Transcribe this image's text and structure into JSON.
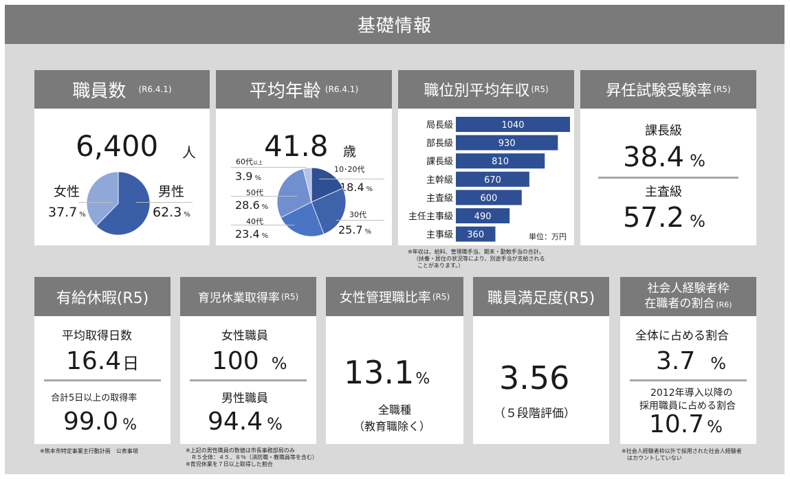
{
  "title": "基礎情報",
  "staff": {
    "header": "職員数",
    "date": "(R6.4.1)",
    "count": "6,400",
    "unit": "人",
    "female_label": "女性",
    "female_value": "37.7",
    "male_label": "男性",
    "male_value": "62.3",
    "pct": "%"
  },
  "age": {
    "header": "平均年齢",
    "date": "(R6.4.1)",
    "value": "41.8",
    "unit": "歳",
    "labels": [
      {
        "name": "60代",
        "suffix": "以上",
        "value": "3.9"
      },
      {
        "name": "50代",
        "value": "28.6"
      },
      {
        "name": "40代",
        "value": "23.4"
      },
      {
        "name": "10･20代",
        "value": "18.4"
      },
      {
        "name": "30代",
        "value": "25.7"
      }
    ],
    "pct": "%"
  },
  "salary": {
    "header": "職位別平均年収",
    "tag": "(R5)",
    "unit_label": "単位：万円",
    "note_lines": [
      "※年収は、給料、管理職手当、期末・勤勉手当の合計。",
      "（扶養・居住の状況等により、別途手当が支給される",
      "ことがあります。）"
    ]
  },
  "exam": {
    "header": "昇任試験受験率",
    "tag": "(R5)",
    "label1": "課長級",
    "value1": "38.4",
    "label2": "主査級",
    "value2": "57.2",
    "pct": "%"
  },
  "leave": {
    "header": "有給休暇(R5)",
    "label1": "平均取得日数",
    "value1": "16.4",
    "unit1": "日",
    "label2": "合計5日以上の取得率",
    "value2": "99.0",
    "pct": "%",
    "note": "※熊本市特定事業主行動計画　公表事項"
  },
  "childcare": {
    "header": "育児休業取得率",
    "tag": "(R5)",
    "label1": "女性職員",
    "value1": "100",
    "label2": "男性職員",
    "value2": "94.4",
    "pct": "%",
    "note_lines": [
      "※上記の男性職員の数値は市長事務部局のみ",
      "　Ｒ５全体：４５．８％（消防職・教職員等を含む）",
      "※育児休業を７日以上取得した割合"
    ]
  },
  "women_mgr": {
    "header": "女性管理職比率",
    "tag": "(R5)",
    "value": "13.1",
    "pct": "%",
    "sub1": "全職種",
    "sub2": "（教育職除く）"
  },
  "satisfaction": {
    "header": "職員満足度(R5)",
    "value": "3.56",
    "sub": "（５段階評価）"
  },
  "experienced": {
    "header1": "社会人経験者枠",
    "header2": "在職者の割合",
    "tag": "(R6)",
    "label1": "全体に占める割合",
    "value1": "3.7",
    "label2a": "2012年導入以降の",
    "label2b": "採用職員に占める割合",
    "value2": "10.7",
    "pct": "%",
    "note_lines": [
      "※社会人経験者枠以外で採用された社会人経験者",
      "　はカウントしていない"
    ]
  },
  "chart_data": [
    {
      "type": "pie",
      "categories": [
        "男性",
        "女性"
      ],
      "values": [
        62.3,
        37.7
      ],
      "colors": [
        "#3a5ea8",
        "#8fa8d8"
      ]
    },
    {
      "type": "pie",
      "categories": [
        "10･20代",
        "30代",
        "40代",
        "50代",
        "60代以上"
      ],
      "values": [
        18.4,
        25.7,
        23.4,
        28.6,
        3.9
      ],
      "colors": [
        "#2f4f94",
        "#3f63aa",
        "#4a74c4",
        "#6f8fd0",
        "#b3c3e6"
      ]
    },
    {
      "type": "bar",
      "orientation": "horizontal",
      "categories": [
        "局長級",
        "部長級",
        "課長級",
        "主幹級",
        "主査級",
        "主任主事級",
        "主事級"
      ],
      "values": [
        1040,
        930,
        810,
        670,
        600,
        490,
        360
      ],
      "color": "#2f4f94",
      "xlim": [
        0,
        1040
      ]
    }
  ]
}
